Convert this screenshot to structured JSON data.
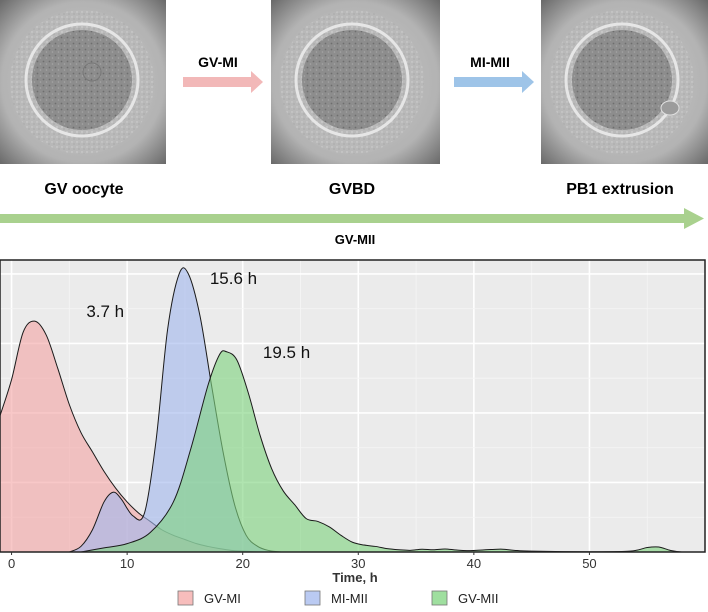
{
  "stages": {
    "gv_oocyte": "GV oocyte",
    "gvbd": "GVBD",
    "pb1_extrusion": "PB1 extrusion"
  },
  "transitions": {
    "gv_mi": {
      "label": "GV-MI",
      "color": "#f2b8b8"
    },
    "mi_mii": {
      "label": "MI-MII",
      "color": "#9ec4e8"
    },
    "gv_mii": {
      "label": "GV-MII",
      "color": "#a9d18e"
    }
  },
  "chart_data": {
    "type": "area",
    "title": "",
    "xlabel": "Time, h",
    "ylabel": "",
    "xlim": [
      -1,
      60
    ],
    "ylim": [
      0,
      1.05
    ],
    "x_ticks": [
      0,
      10,
      20,
      30,
      40,
      50
    ],
    "grid": true,
    "legend_placement": "bottom",
    "series": [
      {
        "name": "GV-MI",
        "fill": "#f4a7a6",
        "points": [
          [
            -1,
            0.49
          ],
          [
            0,
            0.62
          ],
          [
            1,
            0.79
          ],
          [
            2,
            0.83
          ],
          [
            3,
            0.78
          ],
          [
            4,
            0.66
          ],
          [
            5,
            0.53
          ],
          [
            6,
            0.43
          ],
          [
            7,
            0.36
          ],
          [
            8,
            0.29
          ],
          [
            9,
            0.23
          ],
          [
            10,
            0.18
          ],
          [
            11,
            0.14
          ],
          [
            12,
            0.11
          ],
          [
            13,
            0.08
          ],
          [
            14,
            0.06
          ],
          [
            15,
            0.045
          ],
          [
            16,
            0.03
          ],
          [
            17,
            0.02
          ],
          [
            18,
            0.012
          ],
          [
            19,
            0.006
          ],
          [
            20,
            0.003
          ],
          [
            21,
            0.001
          ],
          [
            22,
            0
          ]
        ]
      },
      {
        "name": "MI-MII",
        "fill": "#a3b8ee",
        "points": [
          [
            5,
            0
          ],
          [
            6,
            0.02
          ],
          [
            7,
            0.08
          ],
          [
            8,
            0.18
          ],
          [
            8.8,
            0.215
          ],
          [
            9.5,
            0.19
          ],
          [
            10.5,
            0.13
          ],
          [
            11.5,
            0.14
          ],
          [
            12.5,
            0.4
          ],
          [
            13.5,
            0.8
          ],
          [
            14.5,
            1.0
          ],
          [
            15.3,
            1.0
          ],
          [
            16.3,
            0.85
          ],
          [
            17.3,
            0.6
          ],
          [
            18.3,
            0.36
          ],
          [
            19.3,
            0.17
          ],
          [
            20.3,
            0.06
          ],
          [
            21.3,
            0.02
          ],
          [
            22.3,
            0.005
          ],
          [
            23.3,
            0
          ]
        ]
      },
      {
        "name": "GV-MII",
        "fill": "#7fd47f",
        "points": [
          [
            6,
            0
          ],
          [
            8,
            0.015
          ],
          [
            10,
            0.03
          ],
          [
            12,
            0.07
          ],
          [
            14,
            0.18
          ],
          [
            15.5,
            0.37
          ],
          [
            17,
            0.6
          ],
          [
            18,
            0.71
          ],
          [
            18.6,
            0.72
          ],
          [
            19.5,
            0.69
          ],
          [
            20.5,
            0.57
          ],
          [
            21.5,
            0.42
          ],
          [
            22.5,
            0.3
          ],
          [
            23.5,
            0.22
          ],
          [
            24.5,
            0.17
          ],
          [
            25.5,
            0.12
          ],
          [
            26.5,
            0.11
          ],
          [
            27.5,
            0.09
          ],
          [
            28.5,
            0.06
          ],
          [
            29.5,
            0.035
          ],
          [
            30.5,
            0.025
          ],
          [
            31.5,
            0.02
          ],
          [
            32.5,
            0.012
          ],
          [
            33.5,
            0.008
          ],
          [
            34.5,
            0.006
          ],
          [
            35.5,
            0.01
          ],
          [
            36.5,
            0.008
          ],
          [
            37.5,
            0.011
          ],
          [
            38.5,
            0.007
          ],
          [
            39.5,
            0.005
          ],
          [
            41.5,
            0.009
          ],
          [
            42.5,
            0.01
          ],
          [
            43.5,
            0.006
          ],
          [
            45,
            0.003
          ],
          [
            50,
            0.001
          ],
          [
            53.5,
            0.003
          ],
          [
            55,
            0.016
          ],
          [
            56,
            0.018
          ],
          [
            57,
            0.006
          ],
          [
            58,
            0
          ],
          [
            60,
            0
          ]
        ]
      }
    ],
    "annotations": [
      {
        "text": "3.7 h",
        "x": 3.7,
        "y": 0.83
      },
      {
        "text": "15.6 h",
        "x": 15.6,
        "y": 1.0
      },
      {
        "text": "19.5 h",
        "x": 19.5,
        "y": 0.72
      }
    ]
  }
}
